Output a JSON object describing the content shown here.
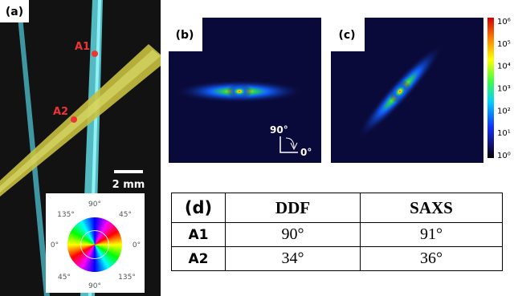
{
  "panel_a": {
    "label": "(a)",
    "points": [
      "A1",
      "A2"
    ],
    "scale_bar": "2 mm",
    "wheel_labels": {
      "top": "90°",
      "top_left": "135°",
      "top_right": "45°",
      "left": "0°",
      "right": "0°",
      "bottom_left": "45°",
      "bottom_right": "135°",
      "bottom": "90°"
    }
  },
  "panel_b": {
    "label": "(b)",
    "inset_up": "90°",
    "inset_right": "0°"
  },
  "panel_c": {
    "label": "(c)"
  },
  "colorbar": {
    "tick_labels": [
      "10⁶",
      "10⁵",
      "10⁴",
      "10³",
      "10²",
      "10¹",
      "10⁰"
    ]
  },
  "table": {
    "label": "(d)",
    "header": [
      "DDF",
      "SAXS"
    ],
    "rows": [
      [
        "A1",
        "90°",
        "91°"
      ],
      [
        "A2",
        "34°",
        "36°"
      ]
    ]
  }
}
